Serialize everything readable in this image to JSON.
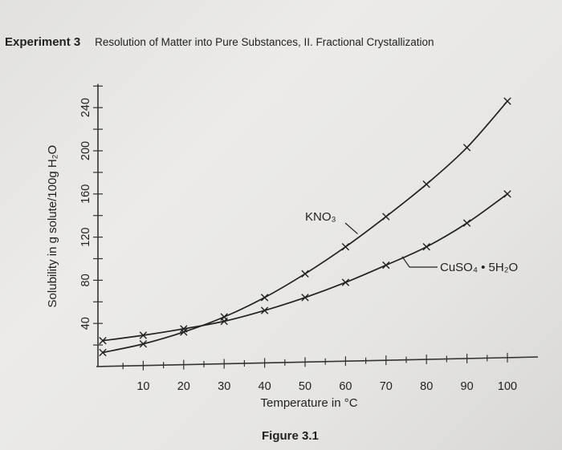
{
  "header": {
    "experiment": "Experiment 3",
    "title": "Resolution of Matter into Pure Substances, II. Fractional Crystallization"
  },
  "figure_caption": "Figure 3.1",
  "chart_data": {
    "type": "line",
    "title": "",
    "xlabel": "Temperature in °C",
    "ylabel": "Solubility in g solute/100g H₂O",
    "xlim": [
      0,
      100
    ],
    "ylim": [
      0,
      260
    ],
    "xticks": [
      10,
      20,
      30,
      40,
      50,
      60,
      70,
      80,
      90,
      100
    ],
    "yticks": [
      40,
      80,
      120,
      160,
      200,
      240
    ],
    "series": [
      {
        "name": "KNO₃",
        "x": [
          0,
          10,
          20,
          30,
          40,
          50,
          60,
          70,
          80,
          90,
          100
        ],
        "y": [
          13,
          21,
          32,
          46,
          64,
          86,
          111,
          139,
          169,
          203,
          246
        ]
      },
      {
        "name": "CuSO₄ • 5H₂O",
        "x": [
          0,
          10,
          20,
          30,
          40,
          50,
          60,
          70,
          80,
          90,
          100
        ],
        "y": [
          24,
          29,
          35,
          42,
          52,
          64,
          78,
          94,
          111,
          133,
          160
        ]
      }
    ],
    "grid": false
  }
}
